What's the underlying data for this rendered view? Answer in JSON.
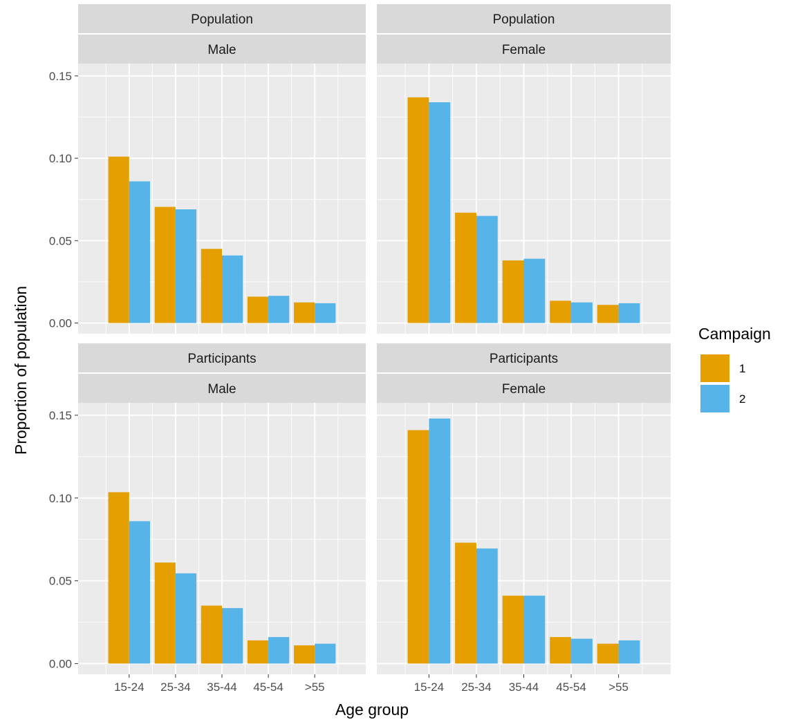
{
  "chart_data": {
    "type": "bar",
    "xlabel": "Age group",
    "ylabel": "Proportion of population",
    "categories": [
      "15-24",
      "25-34",
      "35-44",
      "45-54",
      ">55"
    ],
    "yticks": [
      "0.00",
      "0.05",
      "0.10",
      "0.15"
    ],
    "ylim": [
      -0.0065,
      0.1575
    ],
    "grid": true,
    "legend": {
      "title": "Campaign",
      "placement": "right",
      "entries": [
        {
          "label": "1",
          "color": "#E69F00"
        },
        {
          "label": "2",
          "color": "#56B4E9"
        }
      ]
    },
    "facets": [
      {
        "row_label": "Population",
        "col_label": "Male",
        "series": [
          {
            "name": "1",
            "values": [
              0.101,
              0.0705,
              0.045,
              0.016,
              0.0125
            ]
          },
          {
            "name": "2",
            "values": [
              0.086,
              0.069,
              0.041,
              0.0165,
              0.012
            ]
          }
        ]
      },
      {
        "row_label": "Population",
        "col_label": "Female",
        "series": [
          {
            "name": "1",
            "values": [
              0.137,
              0.067,
              0.038,
              0.0135,
              0.011
            ]
          },
          {
            "name": "2",
            "values": [
              0.134,
              0.065,
              0.039,
              0.0125,
              0.012
            ]
          }
        ]
      },
      {
        "row_label": "Participants",
        "col_label": "Male",
        "series": [
          {
            "name": "1",
            "values": [
              0.1035,
              0.061,
              0.035,
              0.014,
              0.011
            ]
          },
          {
            "name": "2",
            "values": [
              0.086,
              0.0545,
              0.0335,
              0.016,
              0.012
            ]
          }
        ]
      },
      {
        "row_label": "Participants",
        "col_label": "Female",
        "series": [
          {
            "name": "1",
            "values": [
              0.141,
              0.073,
              0.041,
              0.016,
              0.012
            ]
          },
          {
            "name": "2",
            "values": [
              0.148,
              0.0695,
              0.041,
              0.015,
              0.014
            ]
          }
        ]
      }
    ]
  }
}
